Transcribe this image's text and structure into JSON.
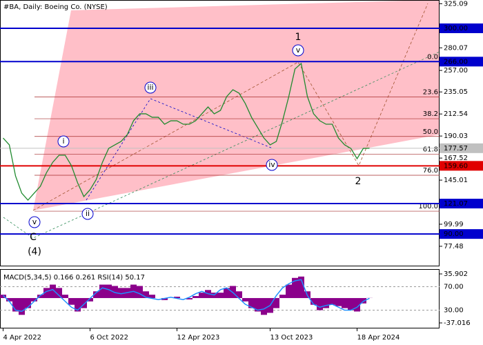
{
  "chart_data": {
    "type": "line",
    "title": "#BA, Daily:  Boeing Co. (NYSE)",
    "color": "#1f8a2e",
    "categories": [
      "4 Apr 2022",
      null,
      null,
      null,
      null,
      null,
      null,
      null,
      null,
      null,
      null,
      null,
      null,
      null,
      "6 Oct 2022",
      null,
      null,
      null,
      null,
      null,
      null,
      null,
      null,
      null,
      null,
      null,
      null,
      null,
      "12 Apr 2023",
      null,
      null,
      null,
      null,
      null,
      null,
      null,
      null,
      null,
      null,
      null,
      null,
      null,
      null,
      "13 Oct 2023",
      null,
      null,
      null,
      null,
      null,
      null,
      null,
      null,
      null,
      null,
      null,
      null,
      null,
      "18 Apr 2024",
      null,
      null
    ],
    "values": [
      188.0,
      181.0,
      149.3,
      131.7,
      124.6,
      131.7,
      138.7,
      152.8,
      163.3,
      170.4,
      170.4,
      159.8,
      142.2,
      128.2,
      135.2,
      145.7,
      163.3,
      177.4,
      181.0,
      184.5,
      191.5,
      205.6,
      212.7,
      212.7,
      209.2,
      209.2,
      202.1,
      205.6,
      205.6,
      202.1,
      202.1,
      205.6,
      212.7,
      219.7,
      212.7,
      216.2,
      230.3,
      237.3,
      233.8,
      223.2,
      209.2,
      198.6,
      188.0,
      181.0,
      184.5,
      205.6,
      230.3,
      258.5,
      264.1,
      230.3,
      212.7,
      205.6,
      202.1,
      202.1,
      188.0,
      181.0,
      177.4,
      166.9,
      177.4,
      177.57
    ],
    "ylim": [
      57.7,
      328.9
    ],
    "yticks": [
      325.09,
      280.07,
      {
        "value": 257,
        "label": "257.00"
      },
      235.05,
      212.54,
      190.03,
      167.52,
      145.01,
      99.99,
      77.48
    ],
    "levels": [
      {
        "value": 300,
        "label": "300.00",
        "color": "#0000cd"
      },
      {
        "value": 266,
        "label": "266.00",
        "color": "#0000cd"
      },
      {
        "value": 177.57,
        "label": "177.57",
        "color": "#c0c0c0"
      },
      {
        "value": 159.6,
        "label": "159.60",
        "color": "#e00000"
      },
      {
        "value": 121.07,
        "label": "121.07",
        "color": "#0000cd"
      },
      {
        "value": 90,
        "label": "90.00",
        "color": "#0000cd"
      }
    ],
    "fib_levels": [
      {
        "label": "0.0",
        "price": 266
      },
      {
        "label": "23.6",
        "price": 230
      },
      {
        "label": "38.2",
        "price": 207.7
      },
      {
        "label": "50.0",
        "price": 189.6
      },
      {
        "label": "61.8",
        "price": 171.6
      },
      {
        "label": "76.0",
        "price": 150
      },
      {
        "label": "100.0",
        "price": 113.3
      }
    ],
    "annotations": [
      {
        "text": "1",
        "color": "#a52a2a",
        "circled": false
      },
      {
        "text": "v",
        "color": "#0000cd",
        "circled": true
      },
      {
        "text": "iii",
        "color": "#0000cd",
        "circled": true
      },
      {
        "text": "i",
        "color": "#0000cd",
        "circled": true
      },
      {
        "text": "ii",
        "color": "#0000cd",
        "circled": true
      },
      {
        "text": "iv",
        "color": "#0000cd",
        "circled": true
      },
      {
        "text": "v",
        "color": "#0000cd",
        "circled": true
      },
      {
        "text": "C",
        "color": "#a52a2a",
        "circled": false
      },
      {
        "text": "(4)",
        "color": "#1f8a2e",
        "circled": false
      },
      {
        "text": "2",
        "color": "#a52a2a",
        "circled": false
      }
    ],
    "indicator": {
      "title": "MACD(5,34,5) 0.166 0.261 RSI(14) 50.17",
      "macd_color": "#8b008b",
      "rsi_color": "#1e90ff",
      "macd_ylim": [
        -44.2,
        43.1
      ],
      "macd_yticks": [
        35.902,
        -37.016
      ],
      "rsi_ylim": [
        0,
        100
      ],
      "rsi_yticks": [
        {
          "value": 70,
          "label": "70.00"
        },
        {
          "value": 30,
          "label": "30.00"
        }
      ],
      "macd": [
        5,
        -5,
        -20,
        -25,
        -15,
        -5,
        5,
        15,
        20,
        15,
        5,
        -10,
        -20,
        -15,
        -5,
        10,
        20,
        20,
        18,
        15,
        15,
        20,
        18,
        10,
        5,
        0,
        -3,
        0,
        2,
        0,
        -2,
        3,
        8,
        12,
        8,
        8,
        15,
        18,
        10,
        -5,
        -15,
        -20,
        -25,
        -22,
        -15,
        5,
        20,
        30,
        32,
        10,
        -10,
        -18,
        -15,
        -10,
        -12,
        -15,
        -18,
        -20,
        -8,
        0.166
      ],
      "rsi": [
        55,
        45,
        30,
        28,
        35,
        45,
        55,
        62,
        65,
        55,
        45,
        35,
        30,
        40,
        50,
        60,
        68,
        65,
        60,
        58,
        60,
        62,
        58,
        52,
        50,
        48,
        50,
        52,
        50,
        48,
        52,
        58,
        62,
        58,
        56,
        65,
        68,
        60,
        50,
        40,
        35,
        30,
        32,
        38,
        55,
        68,
        75,
        80,
        82,
        55,
        40,
        35,
        38,
        40,
        35,
        30,
        30,
        35,
        45,
        50.17
      ]
    }
  }
}
